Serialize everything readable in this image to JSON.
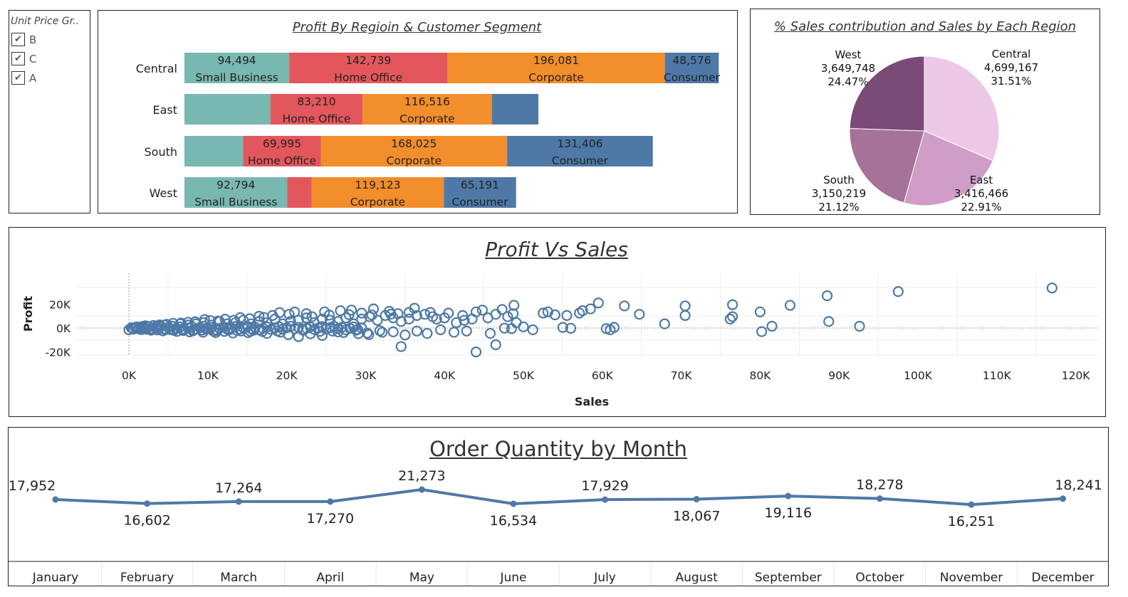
{
  "filter": {
    "title": "Unit Price Gr..",
    "options": [
      {
        "label": "B",
        "checked": true
      },
      {
        "label": "C",
        "checked": true
      },
      {
        "label": "A",
        "checked": true
      }
    ]
  },
  "colors": {
    "Small Business": "#79b8b0",
    "Home Office": "#e3575c",
    "Corporate": "#f28e2b",
    "Consumer": "#4e79a7",
    "scatter": "#4e79a7",
    "line": "#4e79a7",
    "pie": [
      "#ecc8e6",
      "#cf9dc6",
      "#a77299",
      "#7b4b77"
    ]
  },
  "bar_chart": {
    "title": "Profit By Regioin & Customer  Segment"
  },
  "pie_chart": {
    "title": "% Sales contribution and Sales by Each Region"
  },
  "scatter_chart": {
    "title": "Profit Vs Sales"
  },
  "line_chart": {
    "title": "Order Quantity by Month"
  },
  "chart_data": [
    {
      "type": "bar",
      "orientation": "horizontal",
      "stacked": true,
      "title": "Profit By Regioin & Customer  Segment",
      "categories": [
        "Central",
        "East",
        "South",
        "West"
      ],
      "series": [
        {
          "name": "Small Business",
          "values": [
            94494,
            77500,
            53000,
            92794
          ],
          "labels": [
            "94,494",
            "",
            "",
            "92,794"
          ]
        },
        {
          "name": "Home Office",
          "values": [
            142739,
            83210,
            69995,
            22000
          ],
          "labels": [
            "142,739",
            "83,210",
            "69,995",
            ""
          ]
        },
        {
          "name": "Corporate",
          "values": [
            196081,
            116516,
            168025,
            119123
          ],
          "labels": [
            "196,081",
            "116,516",
            "168,025",
            "119,123"
          ]
        },
        {
          "name": "Consumer",
          "values": [
            48576,
            42000,
            131406,
            65191
          ],
          "labels": [
            "48,576",
            "",
            "131,406",
            "65,191"
          ]
        }
      ]
    },
    {
      "type": "pie",
      "title": "% Sales contribution and Sales by Each Region",
      "slices": [
        {
          "name": "Central",
          "value": 4699167,
          "value_label": "4,699,167",
          "percent": "31.51%"
        },
        {
          "name": "East",
          "value": 3416466,
          "value_label": "3,416,466",
          "percent": "22.91%"
        },
        {
          "name": "South",
          "value": 3150219,
          "value_label": "3,150,219",
          "percent": "21.12%"
        },
        {
          "name": "West",
          "value": 3649748,
          "value_label": "3,649,748",
          "percent": "24.47%"
        }
      ]
    },
    {
      "type": "scatter",
      "title": "Profit Vs Sales",
      "xlabel": "Sales",
      "ylabel": "Profit",
      "xlim": [
        -1500,
        125000
      ],
      "ylim": [
        -25000,
        35000
      ],
      "xticks": [
        0,
        10000,
        20000,
        30000,
        40000,
        50000,
        60000,
        70000,
        80000,
        90000,
        100000,
        110000,
        120000
      ],
      "xtick_labels": [
        "0K",
        "10K",
        "20K",
        "30K",
        "40K",
        "50K",
        "60K",
        "70K",
        "80K",
        "90K",
        "100K",
        "110K",
        "120K"
      ],
      "yticks": [
        20000,
        0,
        -20000
      ],
      "ytick_labels": [
        "20K",
        "0K",
        "-20K"
      ],
      "points": [
        [
          117000,
          33500
        ],
        [
          97500,
          30500
        ],
        [
          88500,
          27000
        ],
        [
          83800,
          19000
        ],
        [
          76500,
          19500
        ],
        [
          70500,
          18500
        ],
        [
          62800,
          18500
        ],
        [
          59500,
          21000
        ],
        [
          58500,
          16000
        ],
        [
          57500,
          14500
        ],
        [
          55500,
          10500
        ],
        [
          54000,
          11000
        ],
        [
          52500,
          12500
        ],
        [
          48800,
          19000
        ],
        [
          48700,
          12000
        ],
        [
          48000,
          9500
        ],
        [
          46500,
          11500
        ],
        [
          45500,
          8500
        ],
        [
          44000,
          13500
        ],
        [
          43500,
          7500
        ],
        [
          42500,
          6500
        ],
        [
          41500,
          4500
        ],
        [
          40000,
          8500
        ],
        [
          39000,
          7500
        ],
        [
          38500,
          9500
        ],
        [
          37500,
          11500
        ],
        [
          36500,
          10500
        ],
        [
          35500,
          7500
        ],
        [
          34500,
          5500
        ],
        [
          33500,
          8500
        ],
        [
          32500,
          10500
        ],
        [
          31500,
          6500
        ],
        [
          30500,
          9500
        ],
        [
          29500,
          7500
        ],
        [
          28500,
          3500
        ],
        [
          27500,
          8500
        ],
        [
          26500,
          5500
        ],
        [
          25500,
          6500
        ],
        [
          24500,
          7500
        ],
        [
          23500,
          4500
        ],
        [
          22500,
          8500
        ],
        [
          21500,
          6500
        ],
        [
          20500,
          5500
        ],
        [
          19500,
          3500
        ],
        [
          18500,
          7500
        ],
        [
          17500,
          4500
        ],
        [
          16500,
          5500
        ],
        [
          15500,
          3500
        ],
        [
          14500,
          6500
        ],
        [
          13500,
          4500
        ],
        [
          12500,
          3500
        ],
        [
          11500,
          5500
        ],
        [
          10500,
          2500
        ],
        [
          9500,
          4500
        ],
        [
          8500,
          3500
        ],
        [
          7500,
          2500
        ],
        [
          6500,
          3500
        ],
        [
          5500,
          1500
        ],
        [
          4500,
          2500
        ],
        [
          3500,
          1500
        ],
        [
          2500,
          1000
        ],
        [
          1500,
          800
        ],
        [
          800,
          500
        ],
        [
          300,
          200
        ],
        [
          500,
          -300
        ],
        [
          1200,
          -600
        ],
        [
          2200,
          -900
        ],
        [
          3800,
          -500
        ],
        [
          5200,
          -1200
        ],
        [
          6800,
          -800
        ],
        [
          8200,
          -1500
        ],
        [
          9800,
          -900
        ],
        [
          11200,
          -2100
        ],
        [
          12800,
          -1300
        ],
        [
          14200,
          -2500
        ],
        [
          15800,
          -1800
        ],
        [
          17500,
          -4500
        ],
        [
          19200,
          -3500
        ],
        [
          20200,
          -5500
        ],
        [
          21500,
          -7200
        ],
        [
          23000,
          -4800
        ],
        [
          24500,
          -6200
        ],
        [
          25800,
          -2500
        ],
        [
          27200,
          -3800
        ],
        [
          28800,
          -1800
        ],
        [
          30200,
          -4200
        ],
        [
          30400,
          -5500
        ],
        [
          31800,
          -2200
        ],
        [
          33500,
          -3200
        ],
        [
          35000,
          -5800
        ],
        [
          34500,
          -15500
        ],
        [
          36500,
          -2500
        ],
        [
          37800,
          -4500
        ],
        [
          39500,
          -1500
        ],
        [
          41200,
          -3500
        ],
        [
          42800,
          -2500
        ],
        [
          44000,
          -20000
        ],
        [
          45800,
          -4500
        ],
        [
          46500,
          -14000
        ],
        [
          47600,
          -100
        ],
        [
          48500,
          -500
        ],
        [
          50000,
          1000
        ],
        [
          51200,
          -1500
        ],
        [
          55000,
          500
        ],
        [
          56000,
          -200
        ],
        [
          60500,
          -500
        ],
        [
          61000,
          -1500
        ],
        [
          61500,
          500
        ],
        [
          64700,
          11500
        ],
        [
          67900,
          3500
        ],
        [
          70500,
          10500
        ],
        [
          76500,
          9500
        ],
        [
          76200,
          7500
        ],
        [
          80000,
          13500
        ],
        [
          81500,
          1500
        ],
        [
          80200,
          -3000
        ],
        [
          88700,
          5500
        ],
        [
          92600,
          1500
        ],
        [
          26800,
          14500
        ],
        [
          28200,
          15000
        ],
        [
          31000,
          16000
        ],
        [
          33000,
          14000
        ],
        [
          35500,
          13000
        ],
        [
          29500,
          12500
        ],
        [
          24800,
          13500
        ],
        [
          22500,
          12000
        ],
        [
          20300,
          11500
        ],
        [
          18200,
          10500
        ],
        [
          16500,
          9800
        ],
        [
          14100,
          8700
        ],
        [
          12200,
          7400
        ],
        [
          10300,
          6300
        ],
        [
          8400,
          5200
        ],
        [
          6600,
          4200
        ],
        [
          4800,
          3100
        ],
        [
          3100,
          2100
        ],
        [
          1800,
          1400
        ],
        [
          2800,
          -1800
        ],
        [
          4300,
          -2400
        ],
        [
          6100,
          -2800
        ],
        [
          7700,
          -3200
        ],
        [
          9400,
          -3500
        ],
        [
          11000,
          -3800
        ],
        [
          13200,
          -4200
        ],
        [
          15100,
          -3900
        ],
        [
          16900,
          -2900
        ],
        [
          18800,
          -2400
        ],
        [
          22100,
          -1900
        ],
        [
          24200,
          -2800
        ],
        [
          26500,
          -3300
        ],
        [
          29100,
          -4700
        ],
        [
          32100,
          -3600
        ],
        [
          34100,
          12000
        ],
        [
          36200,
          16500
        ],
        [
          38200,
          13000
        ],
        [
          40500,
          12500
        ],
        [
          42300,
          10500
        ],
        [
          44800,
          15000
        ],
        [
          47300,
          15500
        ],
        [
          49100,
          4500
        ],
        [
          53100,
          13500
        ],
        [
          57100,
          12500
        ],
        [
          25400,
          10800
        ],
        [
          27900,
          11200
        ],
        [
          30800,
          10900
        ],
        [
          33200,
          11600
        ],
        [
          19100,
          12900
        ],
        [
          21000,
          13400
        ],
        [
          23200,
          9500
        ],
        [
          17100,
          8900
        ],
        [
          15300,
          7800
        ],
        [
          13300,
          6500
        ],
        [
          11300,
          5800
        ],
        [
          9600,
          7100
        ],
        [
          7500,
          4800
        ],
        [
          5600,
          3900
        ],
        [
          3900,
          2600
        ],
        [
          2100,
          1900
        ],
        [
          1000,
          700
        ],
        [
          600,
          -900
        ],
        [
          1600,
          -1300
        ],
        [
          2600,
          -1100
        ],
        [
          3600,
          -1600
        ],
        [
          4600,
          -1400
        ],
        [
          5700,
          -1900
        ],
        [
          6900,
          -2100
        ],
        [
          8100,
          -2300
        ],
        [
          9300,
          -1700
        ],
        [
          10700,
          -2600
        ],
        [
          12100,
          -2800
        ],
        [
          13700,
          -2000
        ],
        [
          15400,
          -2700
        ]
      ]
    },
    {
      "type": "line",
      "title": "Order Quantity by Month",
      "categories": [
        "January",
        "February",
        "March",
        "April",
        "May",
        "June",
        "July",
        "August",
        "September",
        "October",
        "November",
        "December"
      ],
      "values": [
        17952,
        16602,
        17264,
        17270,
        21273,
        16534,
        17929,
        18067,
        19116,
        18278,
        16251,
        18241
      ],
      "value_labels": [
        "17,952",
        "16,602",
        "17,264",
        "17,270",
        "21,273",
        "16,534",
        "17,929",
        "18,067",
        "19,116",
        "18,278",
        "16,251",
        "18,241"
      ]
    }
  ]
}
